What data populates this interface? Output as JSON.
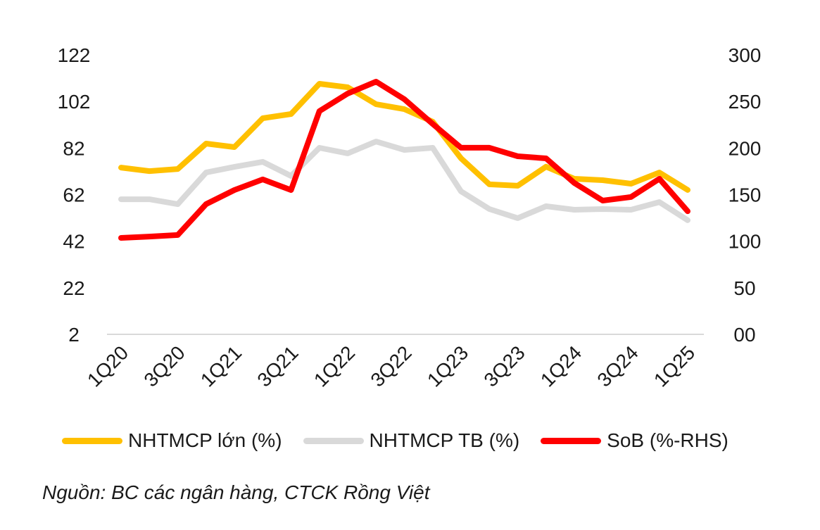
{
  "chart_data": {
    "type": "line",
    "categories": [
      "1Q20",
      "2Q20",
      "3Q20",
      "4Q20",
      "1Q21",
      "2Q21",
      "3Q21",
      "4Q21",
      "1Q22",
      "2Q22",
      "3Q22",
      "4Q22",
      "1Q23",
      "2Q23",
      "3Q23",
      "4Q23",
      "1Q24",
      "2Q24",
      "3Q24",
      "4Q24",
      "1Q25"
    ],
    "x_tick_labels": [
      "1Q20",
      "3Q20",
      "1Q21",
      "3Q21",
      "1Q22",
      "3Q22",
      "1Q23",
      "3Q23",
      "1Q24",
      "3Q24",
      "1Q25"
    ],
    "y_left": {
      "range": [
        2,
        122
      ],
      "ticks": [
        "2",
        "22",
        "42",
        "62",
        "82",
        "102",
        "122"
      ]
    },
    "y_right": {
      "range": [
        0,
        300
      ],
      "ticks": [
        "00",
        "50",
        "100",
        "150",
        "200",
        "250",
        "300"
      ]
    },
    "grid": false,
    "legend_placement": "bottom",
    "series": [
      {
        "name": "NHTMCP lớn (%)",
        "axis": "left",
        "color": "#FFC000",
        "values": [
          73.6,
          72.1,
          73.0,
          83.9,
          82.4,
          94.8,
          96.6,
          109.6,
          108.1,
          100.8,
          98.7,
          93.3,
          77.6,
          66.4,
          65.8,
          74.0,
          68.8,
          68.2,
          66.7,
          71.5,
          64.0
        ]
      },
      {
        "name": "NHTMCP TB (%)",
        "axis": "left",
        "color": "#D9D9D9",
        "values": [
          60.0,
          60.0,
          57.9,
          71.5,
          73.9,
          76.1,
          70.0,
          82.1,
          79.7,
          84.8,
          81.2,
          82.1,
          63.4,
          55.8,
          51.9,
          57.0,
          55.5,
          55.8,
          55.5,
          58.8,
          51.0
        ]
      },
      {
        "name": "SoB (%-RHS)",
        "axis": "right",
        "color": "#FF0000",
        "values": [
          103.5,
          105.0,
          106.6,
          139.8,
          154.9,
          166.3,
          154.9,
          239.6,
          258.5,
          271.3,
          252.4,
          225.9,
          200.3,
          200.3,
          191.2,
          188.9,
          162.5,
          143.6,
          147.4,
          167.0,
          132.2
        ]
      }
    ]
  },
  "source": "Nguồn: BC các ngân hàng, CTCK Rồng Việt"
}
